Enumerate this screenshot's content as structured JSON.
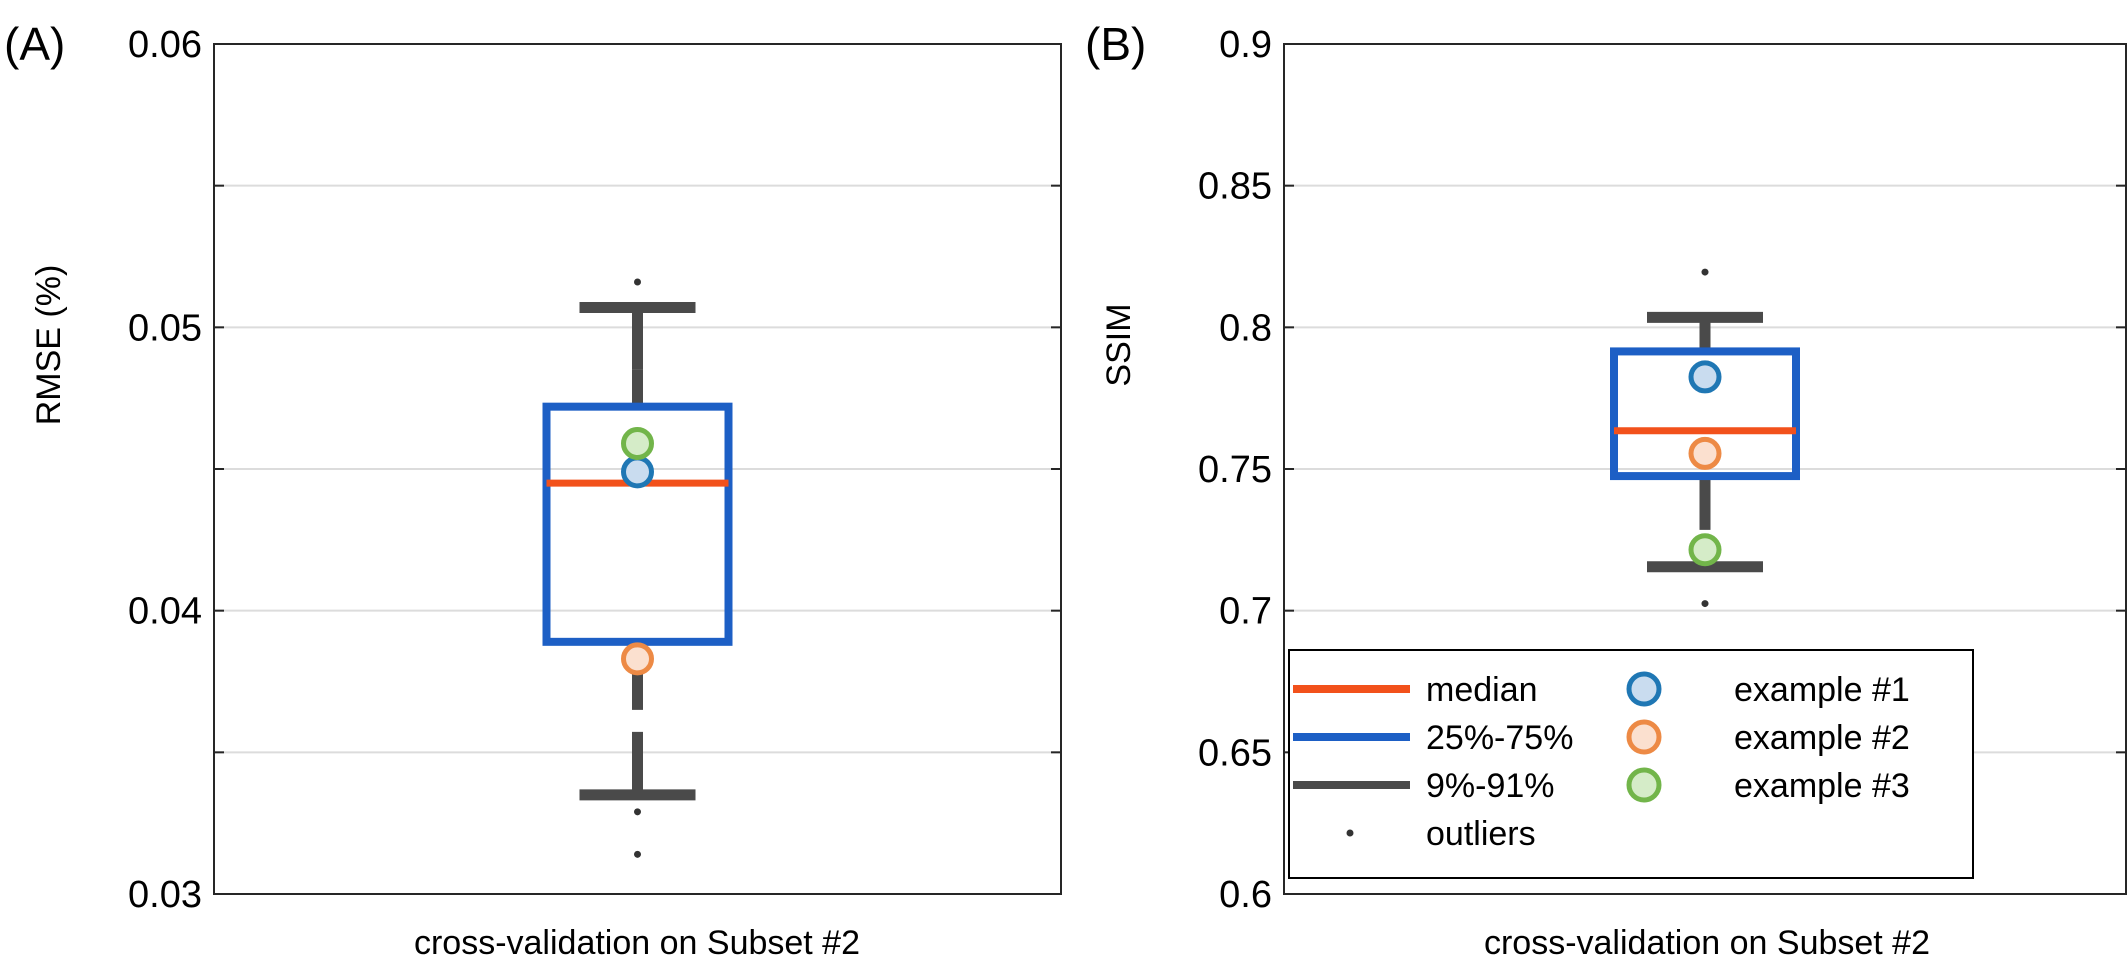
{
  "colors": {
    "median": "#f2511b",
    "iqr": "#1d5fc5",
    "whisker": "#4a4a4a",
    "grid": "#dcdcdc",
    "example1_stroke": "#1f77b4",
    "example1_fill": "#c9dcef",
    "example2_stroke": "#ed8a45",
    "example2_fill": "#fbe0cf",
    "example3_stroke": "#72b54a",
    "example3_fill": "#d5ecc8"
  },
  "legend": {
    "placement": "bottom",
    "entries": [
      {
        "key": "median",
        "label": "median"
      },
      {
        "key": "iqr",
        "label": "25%-75%"
      },
      {
        "key": "whisker",
        "label": "9%-91%"
      },
      {
        "key": "outliers",
        "label": "outliers"
      },
      {
        "key": "example1",
        "label": "example #1"
      },
      {
        "key": "example2",
        "label": "example #2"
      },
      {
        "key": "example3",
        "label": "example #3"
      }
    ]
  },
  "chart_data": [
    {
      "type": "box",
      "panel_label": "(A)",
      "xlabel": "cross-validation on Subset #2",
      "ylabel": "RMSE (%)",
      "ylim": [
        0.03,
        0.06
      ],
      "yticks": [
        0.03,
        0.035,
        0.04,
        0.045,
        0.05,
        0.055,
        0.06
      ],
      "yticklabels": [
        "0.03",
        "",
        "0.04",
        "",
        "0.05",
        "",
        "0.06"
      ],
      "grid": true,
      "box": {
        "median": 0.0445,
        "q1": 0.0389,
        "q3": 0.0472,
        "whisker_low": 0.0335,
        "whisker_high": 0.0507,
        "whisker_low_inner": 0.0365,
        "whisker_high_inner": 0.0485
      },
      "outliers": [
        0.0516,
        0.0329,
        0.0314
      ],
      "examples": [
        {
          "key": "example1",
          "value": 0.0449
        },
        {
          "key": "example2",
          "value": 0.0383
        },
        {
          "key": "example3",
          "value": 0.0459
        }
      ]
    },
    {
      "type": "box",
      "panel_label": "(B)",
      "xlabel": "cross-validation on Subset #2",
      "ylabel": "SSIM",
      "ylim": [
        0.6,
        0.9
      ],
      "yticks": [
        0.6,
        0.65,
        0.7,
        0.75,
        0.8,
        0.85,
        0.9
      ],
      "yticklabels": [
        "0.6",
        "0.65",
        "0.7",
        "0.75",
        "0.8",
        "0.85",
        "0.9"
      ],
      "grid": true,
      "box": {
        "median": 0.7635,
        "q1": 0.7475,
        "q3": 0.7915,
        "whisker_low": 0.7155,
        "whisker_high": 0.8035,
        "whisker_low_inner": 0.7285,
        "whisker_high_inner": 0.8035
      },
      "outliers": [
        0.8195,
        0.7025
      ],
      "examples": [
        {
          "key": "example1",
          "value": 0.7825
        },
        {
          "key": "example2",
          "value": 0.7555
        },
        {
          "key": "example3",
          "value": 0.7215
        }
      ]
    }
  ]
}
